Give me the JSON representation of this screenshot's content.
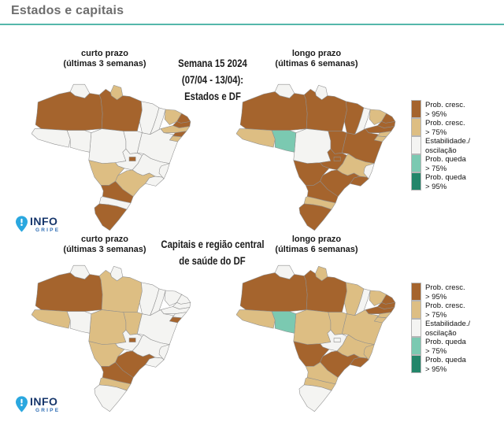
{
  "page": {
    "title": "Estados e capitais",
    "accent_color": "#55b7ab",
    "title_color": "#6d6d6d"
  },
  "logo": {
    "line1": "INFO",
    "line2": "GRIPE",
    "pin_color": "#2aa7df",
    "line1_color": "#16366b",
    "line2_color": "#2e6db4"
  },
  "legend": {
    "colors": {
      "cresc95": "#a5642d",
      "cresc75": "#ddbe83",
      "estab": "#f4f4f2",
      "queda75": "#7bc9b1",
      "queda95": "#23866a"
    },
    "items": [
      {
        "key": "cresc95",
        "line1": "Prob. cresc.",
        "line2": "> 95%"
      },
      {
        "key": "cresc75",
        "line1": "Prob. cresc.",
        "line2": "> 75%"
      },
      {
        "key": "estab",
        "line1": "Estabilidade./",
        "line2": "oscilação"
      },
      {
        "key": "queda75",
        "line1": "Prob. queda",
        "line2": "> 75%"
      },
      {
        "key": "queda95",
        "line1": "Prob. queda",
        "line2": "> 95%"
      }
    ]
  },
  "sections": [
    {
      "left_header": {
        "line1": "curto prazo",
        "line2": "(últimas 3 semanas)"
      },
      "center_title": {
        "line1": "Semana 15 2024",
        "line2": "(07/04 - 13/04):",
        "line3": "Estados e DF"
      },
      "right_header": {
        "line1": "longo prazo",
        "line2": "(últimas 6 semanas)"
      }
    },
    {
      "left_header": {
        "line1": "curto prazo",
        "line2": "(últimas 3 semanas)"
      },
      "center_title": {
        "line1": "Capitais e região central",
        "line2": "de saúde do DF"
      },
      "right_header": {
        "line1": "longo prazo",
        "line2": "(últimas 6 semanas)"
      }
    }
  ],
  "chart_data": [
    {
      "type": "map",
      "title": "Estados e DF — curto prazo (últimas 3 semanas)",
      "legend_scale": [
        "Prob. cresc. > 95%",
        "Prob. cresc. > 75%",
        "Estabilidade./oscilação",
        "Prob. queda > 75%",
        "Prob. queda > 95%"
      ],
      "values": {
        "RR": "estab",
        "AP": "cresc75",
        "AM": "cresc95",
        "PA": "cresc95",
        "AC": "estab",
        "RO": "estab",
        "MT": "estab",
        "TO": "estab",
        "MA": "estab",
        "PI": "estab",
        "CE": "cresc75",
        "RN": "cresc95",
        "PB": "cresc95",
        "PE": "cresc75",
        "AL": "cresc95",
        "SE": "cresc75",
        "BA": "estab",
        "GO": "estab",
        "DF": "cresc95",
        "MG": "estab",
        "ES": "estab",
        "RJ": "estab",
        "SP": "cresc75",
        "MS": "cresc75",
        "PR": "cresc95",
        "SC": "estab",
        "RS": "cresc95"
      }
    },
    {
      "type": "map",
      "title": "Estados e DF — longo prazo (últimas 6 semanas)",
      "legend_scale": [
        "Prob. cresc. > 95%",
        "Prob. cresc. > 75%",
        "Estabilidade./oscilação",
        "Prob. queda > 75%",
        "Prob. queda > 95%"
      ],
      "values": {
        "RR": "estab",
        "AP": "estab",
        "AM": "cresc95",
        "PA": "cresc95",
        "AC": "cresc75",
        "RO": "queda75",
        "MT": "estab",
        "TO": "cresc95",
        "MA": "cresc95",
        "PI": "estab",
        "CE": "cresc75",
        "RN": "cresc95",
        "PB": "cresc95",
        "PE": "cresc95",
        "AL": "cresc75",
        "SE": "cresc75",
        "BA": "cresc95",
        "GO": "cresc95",
        "DF": "cresc95",
        "MG": "cresc75",
        "ES": "estab",
        "RJ": "cresc95",
        "SP": "cresc95",
        "MS": "cresc95",
        "PR": "cresc95",
        "SC": "cresc75",
        "RS": "cresc95"
      }
    },
    {
      "type": "map",
      "title": "Capitais e região central de saúde do DF — curto prazo (últimas 3 semanas)",
      "legend_scale": [
        "Prob. cresc. > 95%",
        "Prob. cresc. > 75%",
        "Estabilidade./oscilação",
        "Prob. queda > 75%",
        "Prob. queda > 95%"
      ],
      "values": {
        "RR": "estab",
        "AP": "estab",
        "AM": "cresc95",
        "PA": "cresc75",
        "AC": "cresc75",
        "RO": "estab",
        "MT": "cresc75",
        "TO": "cresc75",
        "MA": "estab",
        "PI": "estab",
        "CE": "estab",
        "RN": "estab",
        "PB": "estab",
        "PE": "estab",
        "AL": "estab",
        "SE": "cresc95",
        "BA": "estab",
        "GO": "estab",
        "DF": "cresc95",
        "MG": "estab",
        "ES": "estab",
        "RJ": "estab",
        "SP": "cresc95",
        "MS": "cresc75",
        "PR": "cresc95",
        "SC": "cresc75",
        "RS": "estab"
      }
    },
    {
      "type": "map",
      "title": "Capitais e região central de saúde do DF — longo prazo (últimas 6 semanas)",
      "legend_scale": [
        "Prob. cresc. > 95%",
        "Prob. cresc. > 75%",
        "Estabilidade./oscilação",
        "Prob. queda > 75%",
        "Prob. queda > 95%"
      ],
      "values": {
        "RR": "estab",
        "AP": "cresc75",
        "AM": "cresc95",
        "PA": "cresc95",
        "AC": "cresc75",
        "RO": "queda75",
        "MT": "cresc75",
        "TO": "cresc75",
        "MA": "cresc75",
        "PI": "estab",
        "CE": "cresc75",
        "RN": "cresc95",
        "PB": "cresc95",
        "PE": "cresc95",
        "AL": "cresc75",
        "SE": "cresc75",
        "BA": "cresc75",
        "GO": "estab",
        "DF": "estab",
        "MG": "cresc75",
        "ES": "cresc75",
        "RJ": "cresc95",
        "SP": "cresc95",
        "MS": "cresc95",
        "PR": "cresc75",
        "SC": "cresc75",
        "RS": "estab"
      }
    }
  ]
}
